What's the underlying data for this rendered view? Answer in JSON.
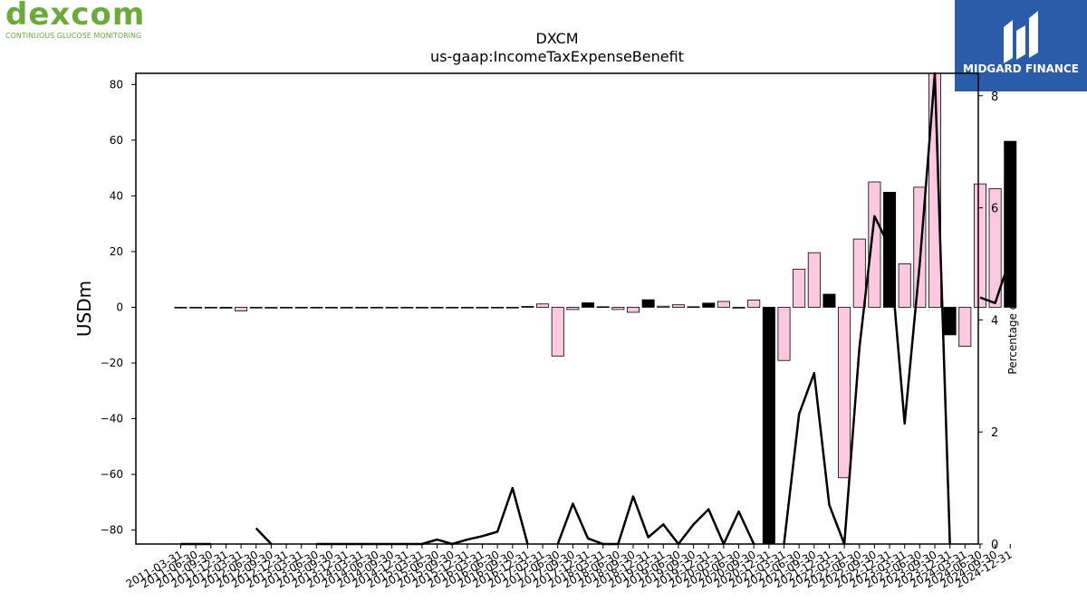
{
  "brand": {
    "name": "dexcom",
    "tagline": "CONTINUOUS GLUCOSE MONITORING",
    "partner": "MIDGARD FINANCE",
    "brand_color": "#6aab3b",
    "partner_color": "#2a5caa"
  },
  "chart_data": {
    "type": "bar",
    "title": "DXCM",
    "subtitle": "us-gaap:IncomeTaxExpenseBenefit",
    "ylabel": "USDm",
    "y2label": "Percentage of Revenues",
    "ylim": [
      -85,
      84
    ],
    "y2lim": [
      0,
      8.4
    ],
    "yticks": [
      -80,
      -60,
      -40,
      -20,
      0,
      20,
      40,
      60,
      80
    ],
    "y2ticks": [
      0,
      2,
      4,
      6,
      8
    ],
    "grid": false,
    "bar_colors": {
      "quarter": "#ffc8e1",
      "year_end": "#000000"
    },
    "categories": [
      "2011-03-31",
      "2011-06-30",
      "2011-09-30",
      "2011-12-31",
      "2012-03-31",
      "2012-06-30",
      "2012-09-30",
      "2012-12-31",
      "2013-03-31",
      "2013-06-30",
      "2013-09-30",
      "2013-12-31",
      "2014-03-31",
      "2014-06-30",
      "2014-09-30",
      "2014-12-31",
      "2015-03-31",
      "2015-06-30",
      "2015-09-30",
      "2015-12-31",
      "2016-03-31",
      "2016-06-30",
      "2016-09-30",
      "2016-12-31",
      "2017-03-31",
      "2017-06-30",
      "2017-09-30",
      "2017-12-31",
      "2018-03-31",
      "2018-06-30",
      "2018-09-30",
      "2018-12-31",
      "2019-03-31",
      "2019-06-30",
      "2019-09-30",
      "2019-12-31",
      "2020-03-31",
      "2020-06-30",
      "2020-09-30",
      "2020-12-31",
      "2021-03-31",
      "2021-06-30",
      "2021-09-30",
      "2021-12-31",
      "2022-03-31",
      "2022-06-30",
      "2022-09-30",
      "2022-12-31",
      "2023-03-31",
      "2023-06-30",
      "2023-09-30",
      "2023-12-31",
      "2024-03-31",
      "2024-06-30",
      "2024-09-30",
      "2024-12-31"
    ],
    "tick_labels": [
      "2011-03-31",
      "2011-06-30",
      "2011-09-30",
      "2011-12-31",
      "2012-03-31",
      "2012-06-30",
      "2012-09-30",
      "2012-12-31",
      "2013-03-31",
      "2013-06-30",
      "2013-09-30",
      "2013-12-31",
      "2014-03-31",
      "2014-06-30",
      "2014-09-30",
      "2014-12-31",
      "2015-03-31",
      "2015-06-30",
      "2015-09-30",
      "2015-12-31",
      "2016-03-31",
      "2016-06-30",
      "2016-09-30",
      "2016-12-31",
      "2017-03-31",
      "2017-06-30",
      "2017-09-30",
      "2017-12-31",
      "2018-03-31",
      "2018-06-30",
      "2018-09-30",
      "2018-12-31",
      "2019-03-31",
      "2019-06-30",
      "2019-09-30",
      "2019-12-31",
      "2020-03-31",
      "2020-06-30",
      "2020-09-30",
      "2020-12-31",
      "2021-03-31",
      "2021-06-30",
      "2021-09-30",
      "2021-12-31",
      "2022-03-31",
      "2022-06-30",
      "2022-09-30",
      "2022-12-31",
      "2023-03-31",
      "2023-06-30",
      "2023-09-30",
      "2023-12-31",
      "2024-03-31",
      "2024-06-30",
      "2024-09-30",
      "2024-12-31"
    ],
    "series": [
      {
        "type": "bar",
        "values": [
          0,
          0,
          0,
          -0.3,
          -1.3,
          0,
          -0.3,
          0,
          0,
          0,
          0,
          0,
          0,
          0,
          0,
          0,
          0,
          0,
          0,
          0,
          0,
          0,
          0,
          0.3,
          1.2,
          -17.5,
          -0.8,
          1.6,
          0.2,
          -0.8,
          -1.8,
          2.7,
          0.4,
          0.9,
          0.2,
          1.5,
          2.1,
          -0.3,
          2.6,
          -85,
          -19.1,
          13.7,
          19.6,
          4.7,
          -61.2,
          24.5,
          45.0,
          41.3,
          15.6,
          43.1,
          84,
          -9.9,
          -14.0,
          44.3,
          42.6,
          59.6
        ]
      },
      {
        "type": "line",
        "axis": "y2",
        "values": [
          0,
          0,
          0,
          null,
          null,
          0.28,
          0,
          null,
          null,
          0,
          0,
          0,
          0,
          0,
          0,
          0,
          0,
          0.08,
          0,
          0.08,
          0.14,
          0.22,
          1.0,
          0,
          null,
          0,
          0.72,
          0.1,
          0,
          0,
          0.85,
          0.12,
          0.35,
          0,
          0.35,
          0.62,
          0,
          0.58,
          0,
          null,
          0,
          2.32,
          3.05,
          0.7,
          0,
          3.5,
          5.85,
          5.3,
          2.15,
          5.0,
          8.4,
          0,
          null,
          4.4,
          4.3,
          5.1
        ]
      }
    ]
  }
}
